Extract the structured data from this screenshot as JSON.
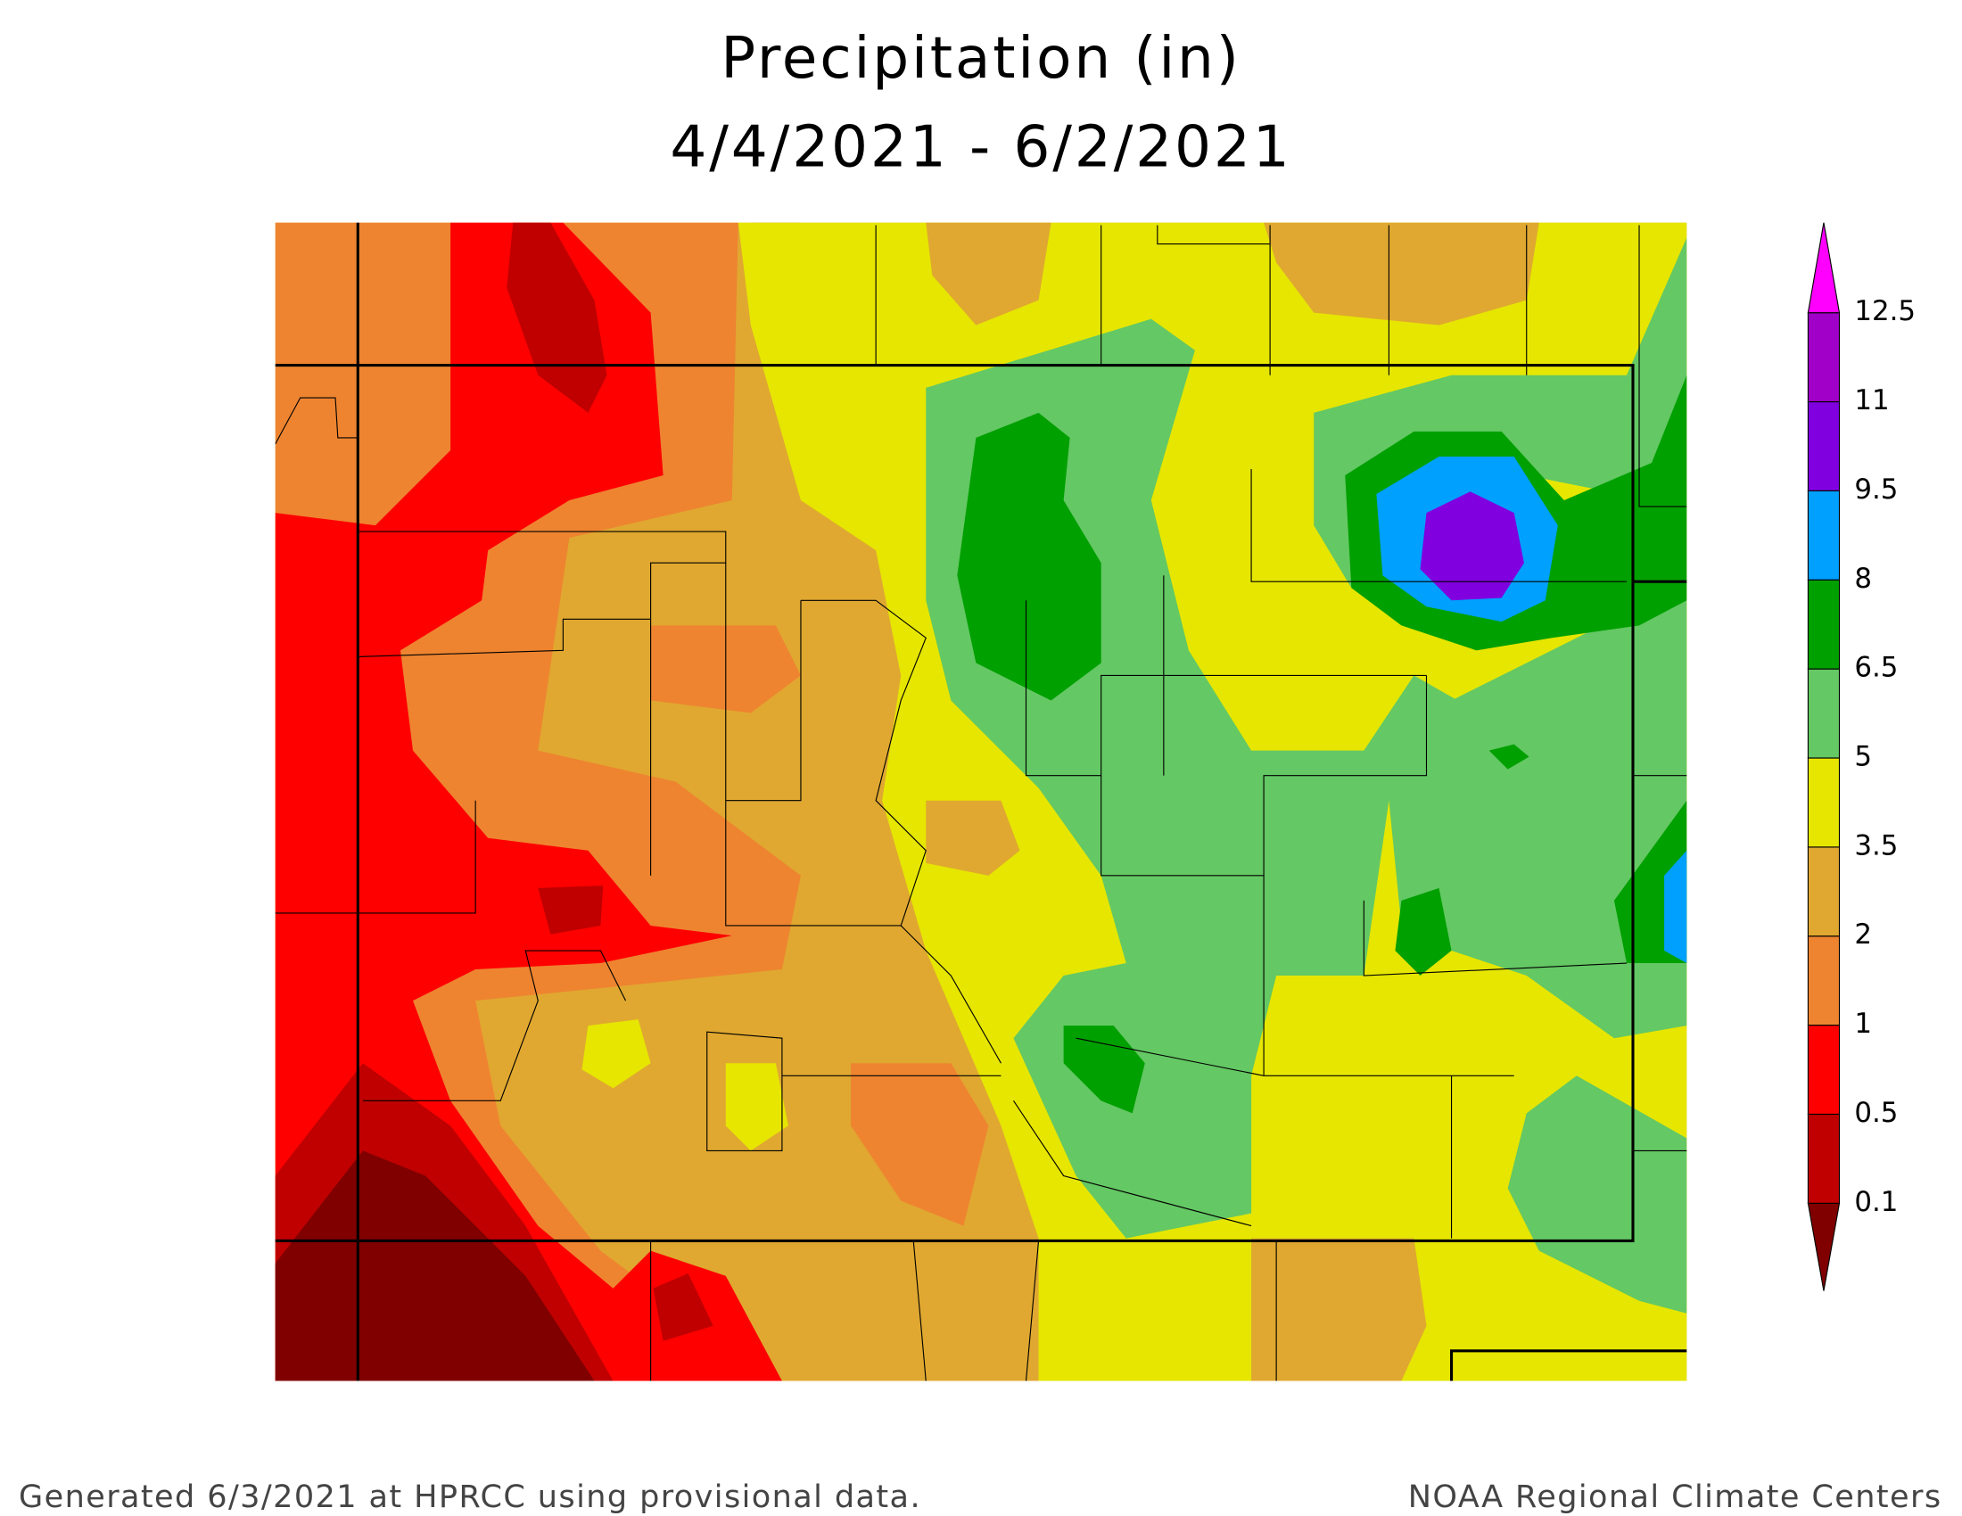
{
  "title": "Precipitation (in)",
  "subtitle": "4/4/2021 - 6/2/2021",
  "legend": {
    "levels": [
      0.1,
      0.5,
      1,
      2,
      3.5,
      5,
      6.5,
      8,
      9.5,
      11,
      12.5
    ],
    "colors": [
      "#800000",
      "#c00000",
      "#ff0000",
      "#ee8430",
      "#e0a830",
      "#e6e600",
      "#64c864",
      "#00a000",
      "#00a0ff",
      "#8000e0",
      "#a000c8",
      "#ff00ff"
    ]
  },
  "footer": {
    "left": "Generated 6/3/2021 at HPRCC using provisional data.",
    "right": "NOAA Regional Climate Centers"
  }
}
